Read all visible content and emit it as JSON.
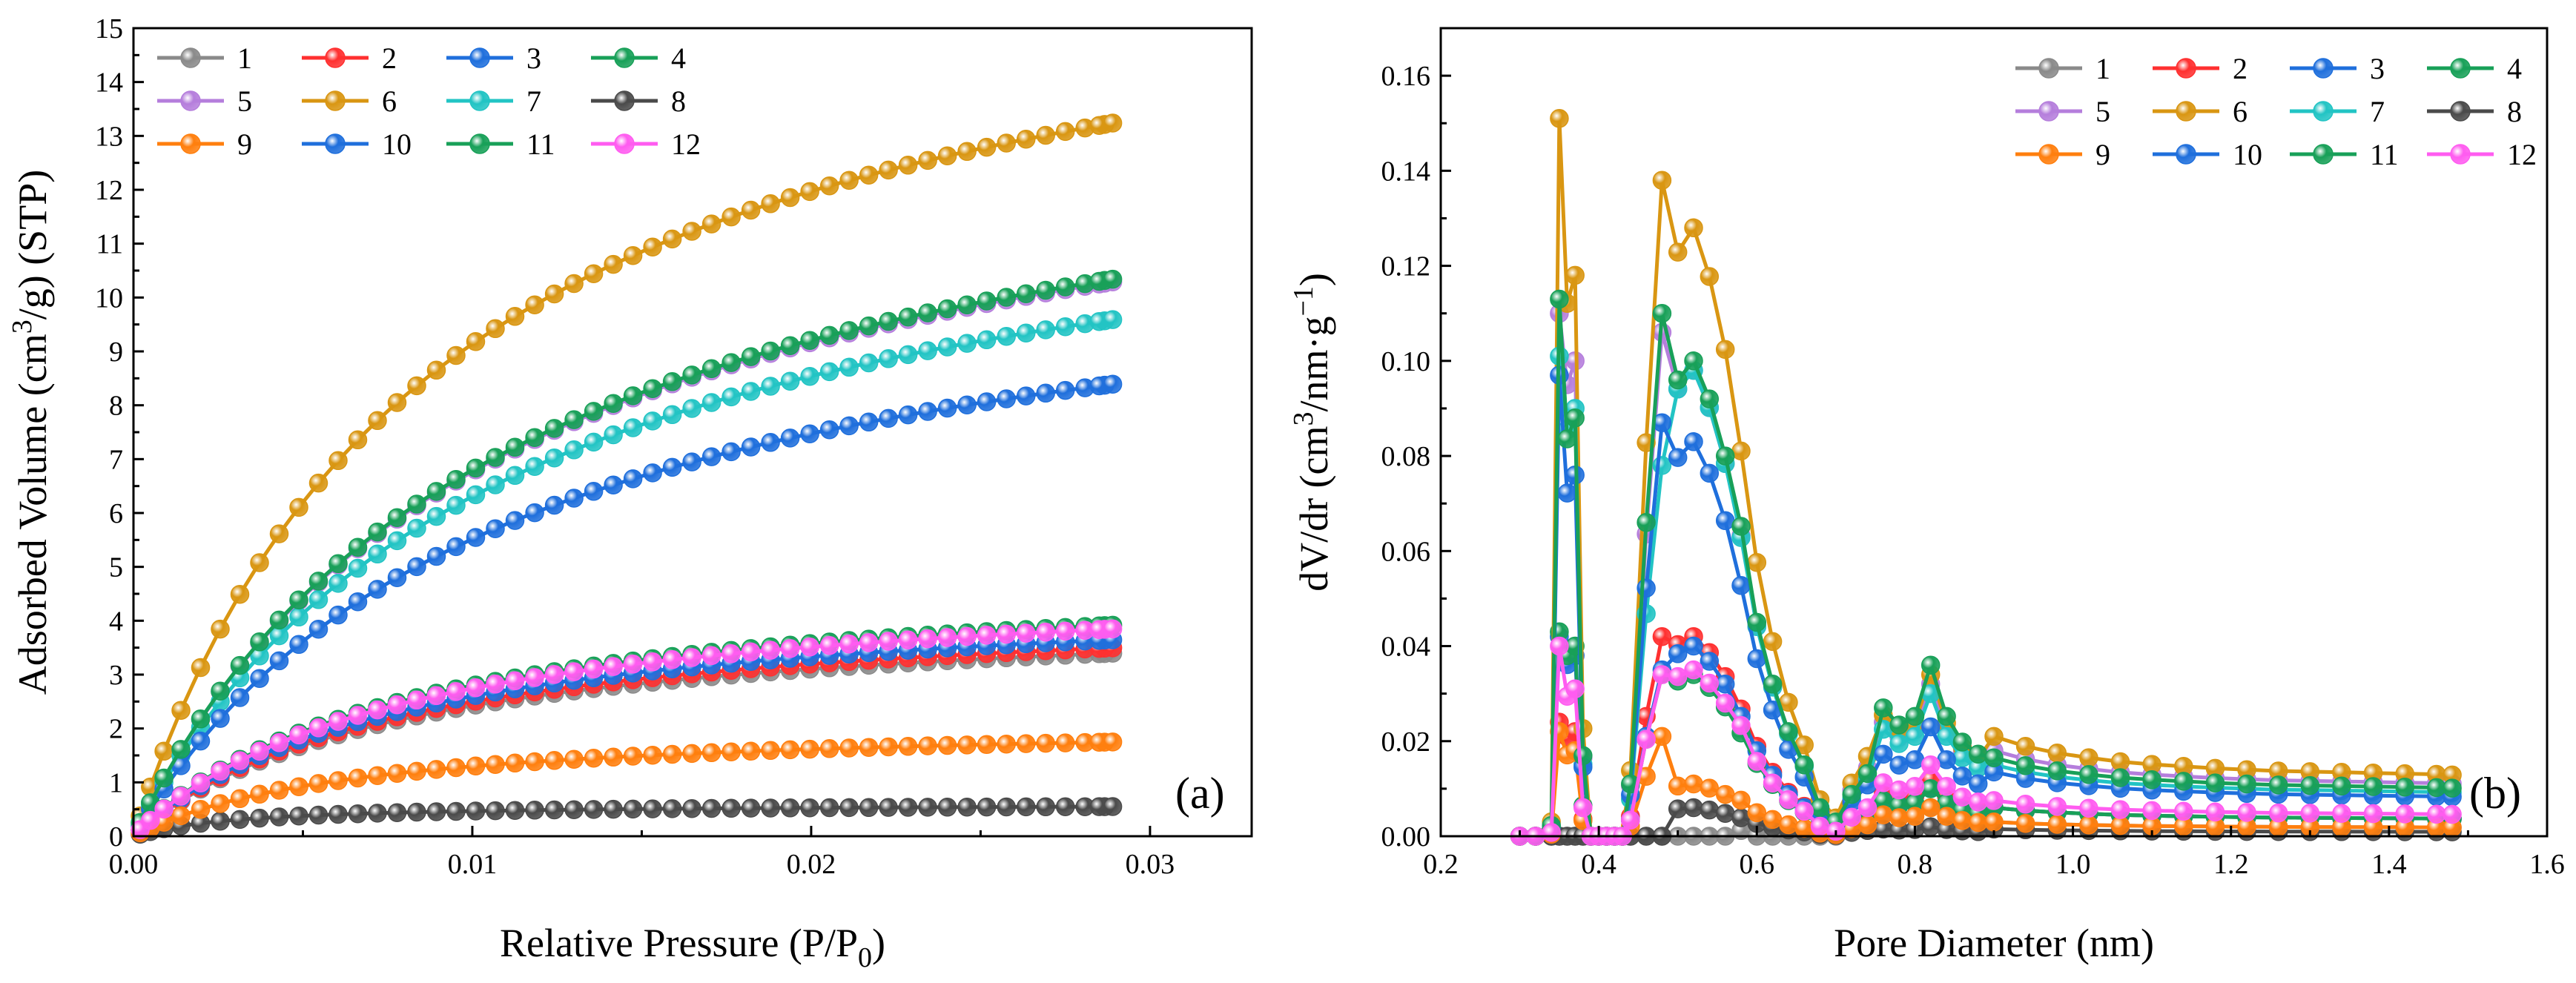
{
  "chart_data": [
    {
      "type": "line",
      "panel_label": "(a)",
      "xlabel_main": "Relative Pressure (P/P",
      "xlabel_sub": "0",
      "xlabel_tail": ")",
      "ylabel_pre": "Adsorbed Volume (cm",
      "ylabel_sup": "3",
      "ylabel_post": "/g) (STP)",
      "xlim": [
        0,
        0.033
      ],
      "ylim": [
        0,
        15
      ],
      "xticks": [
        0,
        0.01,
        0.02,
        0.03
      ],
      "xtick_labels": [
        "0.00",
        "0.01",
        "0.02",
        "0.03"
      ],
      "yticks": [
        0,
        1,
        2,
        3,
        4,
        5,
        6,
        7,
        8,
        9,
        10,
        11,
        12,
        13,
        14,
        15
      ],
      "ytick_labels": [
        "0",
        "1",
        "2",
        "3",
        "4",
        "5",
        "6",
        "7",
        "8",
        "9",
        "10",
        "11",
        "12",
        "13",
        "14",
        "15"
      ],
      "legend_position": "top-left",
      "series": [
        {
          "name": "1",
          "color": "#8a8a8a",
          "model": "iso",
          "a": 3.4,
          "b": 0.0078
        },
        {
          "name": "2",
          "color": "#ff3030",
          "model": "iso",
          "a": 3.5,
          "b": 0.0078
        },
        {
          "name": "3",
          "color": "#1f6fdc",
          "model": "iso",
          "a": 3.65,
          "b": 0.0078
        },
        {
          "name": "4",
          "color": "#18a058",
          "model": "iso",
          "a": 3.92,
          "b": 0.0078
        },
        {
          "name": "5",
          "color": "#b57edc",
          "model": "iso",
          "a": 10.3,
          "b": 0.011
        },
        {
          "name": "6",
          "color": "#d99612",
          "model": "iso",
          "a": 13.25,
          "b": 0.009
        },
        {
          "name": "7",
          "color": "#22c4c4",
          "model": "iso",
          "a": 9.6,
          "b": 0.011
        },
        {
          "name": "8",
          "color": "#4a4a4a",
          "model": "iso",
          "a": 0.55,
          "b": 0.003
        },
        {
          "name": "9",
          "color": "#ff7f0e",
          "model": "iso",
          "a": 1.75,
          "b": 0.0065
        },
        {
          "name": "10",
          "color": "#1f6fdc",
          "model": "iso",
          "a": 8.4,
          "b": 0.011
        },
        {
          "name": "11",
          "color": "#18a058",
          "model": "iso",
          "a": 10.35,
          "b": 0.011
        },
        {
          "name": "12",
          "color": "#ff5cf0",
          "model": "iso",
          "a": 3.85,
          "b": 0.0078
        }
      ]
    },
    {
      "type": "line",
      "panel_label": "(b)",
      "xlabel": "Pore Diameter (nm)",
      "ylabel_pre": "dV/dr (cm",
      "ylabel_sup": "3",
      "ylabel_mid": "/nm·g",
      "ylabel_sup2": "−1",
      "ylabel_post": ")",
      "xlim": [
        0.2,
        1.6
      ],
      "ylim": [
        0,
        0.17
      ],
      "xticks": [
        0.2,
        0.4,
        0.6,
        0.8,
        1.0,
        1.2,
        1.4,
        1.6
      ],
      "xtick_labels": [
        "0.2",
        "0.4",
        "0.6",
        "0.8",
        "1.0",
        "1.2",
        "1.4",
        "1.6"
      ],
      "yticks": [
        0,
        0.02,
        0.04,
        0.06,
        0.08,
        0.1,
        0.12,
        0.14,
        0.16
      ],
      "ytick_labels": [
        "0.00",
        "0.02",
        "0.04",
        "0.06",
        "0.08",
        "0.10",
        "0.12",
        "0.14",
        "0.16"
      ],
      "legend_position": "top-right",
      "x": [
        0.3,
        0.32,
        0.34,
        0.35,
        0.36,
        0.37,
        0.38,
        0.39,
        0.4,
        0.41,
        0.42,
        0.43,
        0.44,
        0.46,
        0.48,
        0.5,
        0.52,
        0.54,
        0.56,
        0.58,
        0.6,
        0.62,
        0.64,
        0.66,
        0.68,
        0.7,
        0.72,
        0.74,
        0.76,
        0.78,
        0.8,
        0.82,
        0.84,
        0.86,
        0.88,
        0.9,
        0.94,
        0.98,
        1.02,
        1.06,
        1.1,
        1.14,
        1.18,
        1.22,
        1.26,
        1.3,
        1.34,
        1.38,
        1.42,
        1.46,
        1.48
      ],
      "series": [
        {
          "name": "1",
          "color": "#8a8a8a",
          "peaks": [
            0.0,
            0.0,
            0.0,
            0.0,
            0.006
          ],
          "tail": 0.002
        },
        {
          "name": "2",
          "color": "#ff3030",
          "peaks": [
            0.024,
            0.022,
            0.042,
            0.042,
            0.012
          ],
          "tail": 0.004
        },
        {
          "name": "3",
          "color": "#1f6fdc",
          "peaks": [
            0.042,
            0.038,
            0.035,
            0.04,
            0.01
          ],
          "tail": 0.004
        },
        {
          "name": "4",
          "color": "#18a058",
          "peaks": [
            0.043,
            0.04,
            0.034,
            0.034,
            0.01
          ],
          "tail": 0.004
        },
        {
          "name": "5",
          "color": "#b57edc",
          "peaks": [
            0.11,
            0.1,
            0.106,
            0.098,
            0.032
          ],
          "tail": 0.012
        },
        {
          "name": "6",
          "color": "#d99612",
          "peaks": [
            0.151,
            0.118,
            0.138,
            0.128,
            0.034
          ],
          "tail": 0.014
        },
        {
          "name": "7",
          "color": "#22c4c4",
          "peaks": [
            0.101,
            0.09,
            0.078,
            0.098,
            0.03
          ],
          "tail": 0.01
        },
        {
          "name": "8",
          "color": "#4a4a4a",
          "peaks": [
            0.0,
            0.0,
            0.0,
            0.006,
            0.002
          ],
          "tail": 0.001
        },
        {
          "name": "9",
          "color": "#ff7f0e",
          "peaks": [
            0.022,
            0.018,
            0.021,
            0.011,
            0.006
          ],
          "tail": 0.002
        },
        {
          "name": "10",
          "color": "#1f6fdc",
          "peaks": [
            0.097,
            0.076,
            0.087,
            0.083,
            0.023
          ],
          "tail": 0.009
        },
        {
          "name": "11",
          "color": "#18a058",
          "peaks": [
            0.113,
            0.088,
            0.11,
            0.1,
            0.036
          ],
          "tail": 0.011
        },
        {
          "name": "12",
          "color": "#ff5cf0",
          "peaks": [
            0.04,
            0.031,
            0.034,
            0.035,
            0.015
          ],
          "tail": 0.005
        }
      ]
    }
  ]
}
